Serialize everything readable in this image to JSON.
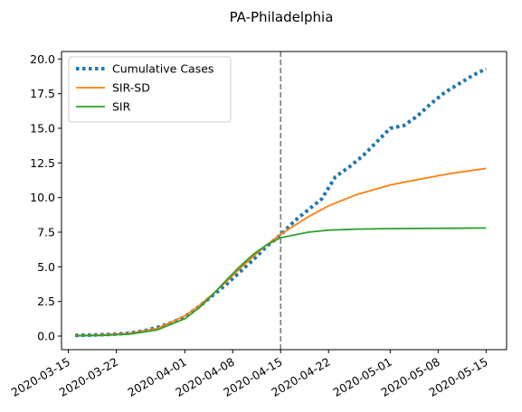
{
  "chart_data": {
    "type": "line",
    "title": "PA-Philadelphia",
    "xlabel": "",
    "ylabel": "",
    "x_axis": {
      "type": "date",
      "range": [
        "2020-03-14",
        "2020-05-18"
      ],
      "ticks": [
        "2020-03-15",
        "2020-03-22",
        "2020-04-01",
        "2020-04-08",
        "2020-04-15",
        "2020-04-22",
        "2020-05-01",
        "2020-05-08",
        "2020-05-15"
      ]
    },
    "y_axis": {
      "range": [
        -0.98,
        20.54
      ],
      "ticks": [
        0.0,
        2.5,
        5.0,
        7.5,
        10.0,
        12.5,
        15.0,
        17.5,
        20.0
      ],
      "tick_labels": [
        "0.0",
        "2.5",
        "5.0",
        "7.5",
        "10.0",
        "12.5",
        "15.0",
        "17.5",
        "20.0"
      ]
    },
    "grid": false,
    "legend_position": "top-left",
    "vertical_marker": {
      "date": "2020-04-15",
      "style": "dashed",
      "color": "#7f7f7f"
    },
    "series": [
      {
        "name": "Cumulative Cases",
        "style": "dotted",
        "color": "#1f77b4",
        "points": [
          [
            "2020-03-16",
            0.05
          ],
          [
            "2020-03-18",
            0.07
          ],
          [
            "2020-03-20",
            0.1
          ],
          [
            "2020-03-22",
            0.14
          ],
          [
            "2020-03-24",
            0.22
          ],
          [
            "2020-03-26",
            0.37
          ],
          [
            "2020-03-28",
            0.62
          ],
          [
            "2020-03-30",
            0.95
          ],
          [
            "2020-04-01",
            1.4
          ],
          [
            "2020-04-03",
            2.1
          ],
          [
            "2020-04-05",
            2.9
          ],
          [
            "2020-04-07",
            3.7
          ],
          [
            "2020-04-09",
            4.6
          ],
          [
            "2020-04-11",
            5.5
          ],
          [
            "2020-04-13",
            6.5
          ],
          [
            "2020-04-15",
            7.3
          ],
          [
            "2020-04-17",
            8.3
          ],
          [
            "2020-04-19",
            9.1
          ],
          [
            "2020-04-21",
            9.9
          ],
          [
            "2020-04-23",
            11.5
          ],
          [
            "2020-04-25",
            12.2
          ],
          [
            "2020-04-27",
            13.0
          ],
          [
            "2020-04-29",
            14.0
          ],
          [
            "2020-05-01",
            15.0
          ],
          [
            "2020-05-03",
            15.2
          ],
          [
            "2020-05-05",
            15.9
          ],
          [
            "2020-05-07",
            16.8
          ],
          [
            "2020-05-09",
            17.6
          ],
          [
            "2020-05-11",
            18.2
          ],
          [
            "2020-05-13",
            18.8
          ],
          [
            "2020-05-15",
            19.3
          ]
        ]
      },
      {
        "name": "SIR-SD",
        "style": "solid",
        "color": "#ff7f0e",
        "points": [
          [
            "2020-03-16",
            0.04
          ],
          [
            "2020-03-20",
            0.08
          ],
          [
            "2020-03-24",
            0.2
          ],
          [
            "2020-03-28",
            0.55
          ],
          [
            "2020-04-01",
            1.45
          ],
          [
            "2020-04-03",
            2.15
          ],
          [
            "2020-04-05",
            3.0
          ],
          [
            "2020-04-07",
            3.9
          ],
          [
            "2020-04-09",
            4.85
          ],
          [
            "2020-04-11",
            5.75
          ],
          [
            "2020-04-13",
            6.6
          ],
          [
            "2020-04-15",
            7.35
          ],
          [
            "2020-04-19",
            8.6
          ],
          [
            "2020-04-22",
            9.4
          ],
          [
            "2020-04-26",
            10.2
          ],
          [
            "2020-05-01",
            10.9
          ],
          [
            "2020-05-05",
            11.3
          ],
          [
            "2020-05-10",
            11.75
          ],
          [
            "2020-05-15",
            12.1
          ]
        ]
      },
      {
        "name": "SIR",
        "style": "solid",
        "color": "#2ca02c",
        "points": [
          [
            "2020-03-16",
            0.02
          ],
          [
            "2020-03-20",
            0.05
          ],
          [
            "2020-03-24",
            0.15
          ],
          [
            "2020-03-28",
            0.45
          ],
          [
            "2020-04-01",
            1.25
          ],
          [
            "2020-04-03",
            2.0
          ],
          [
            "2020-04-05",
            2.95
          ],
          [
            "2020-04-07",
            4.0
          ],
          [
            "2020-04-09",
            5.0
          ],
          [
            "2020-04-11",
            5.9
          ],
          [
            "2020-04-13",
            6.6
          ],
          [
            "2020-04-15",
            7.1
          ],
          [
            "2020-04-19",
            7.5
          ],
          [
            "2020-04-22",
            7.65
          ],
          [
            "2020-04-26",
            7.72
          ],
          [
            "2020-05-01",
            7.76
          ],
          [
            "2020-05-08",
            7.78
          ],
          [
            "2020-05-15",
            7.8
          ]
        ]
      }
    ]
  }
}
